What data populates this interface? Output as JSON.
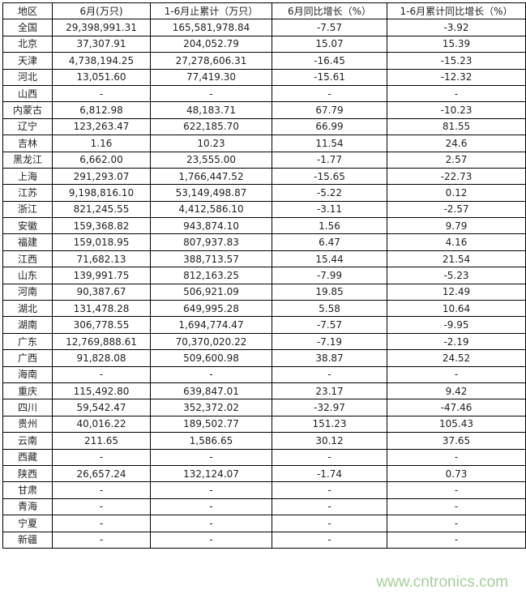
{
  "table": {
    "headers": [
      "地区",
      "6月(万只)",
      "1-6月止累计（万只）",
      "6月同比增长（%）",
      "1-6月累计同比增长（%）"
    ],
    "rows": [
      [
        "全国",
        "29,398,991.31",
        "165,581,978.84",
        "-7.57",
        "-3.92"
      ],
      [
        "北京",
        "37,307.91",
        "204,052.79",
        "15.07",
        "15.39"
      ],
      [
        "天津",
        "4,738,194.25",
        "27,278,606.31",
        "-16.45",
        "-15.23"
      ],
      [
        "河北",
        "13,051.60",
        "77,419.30",
        "-15.61",
        "-12.32"
      ],
      [
        "山西",
        "-",
        "-",
        "-",
        "-"
      ],
      [
        "内蒙古",
        "6,812.98",
        "48,183.71",
        "67.79",
        "-10.23"
      ],
      [
        "辽宁",
        "123,263.47",
        "622,185.70",
        "66.99",
        "81.55"
      ],
      [
        "吉林",
        "1.16",
        "10.23",
        "11.54",
        "24.6"
      ],
      [
        "黑龙江",
        "6,662.00",
        "23,555.00",
        "-1.77",
        "2.57"
      ],
      [
        "上海",
        "291,293.07",
        "1,766,447.52",
        "-15.65",
        "-22.73"
      ],
      [
        "江苏",
        "9,198,816.10",
        "53,149,498.87",
        "-5.22",
        "0.12"
      ],
      [
        "浙江",
        "821,245.55",
        "4,412,586.10",
        "-3.11",
        "-2.57"
      ],
      [
        "安徽",
        "159,368.82",
        "943,874.10",
        "1.56",
        "9.79"
      ],
      [
        "福建",
        "159,018.95",
        "807,937.83",
        "6.47",
        "4.16"
      ],
      [
        "江西",
        "71,682.13",
        "388,713.57",
        "15.44",
        "21.54"
      ],
      [
        "山东",
        "139,991.75",
        "812,163.25",
        "-7.99",
        "-5.23"
      ],
      [
        "河南",
        "90,387.67",
        "506,921.09",
        "19.85",
        "12.49"
      ],
      [
        "湖北",
        "131,478.28",
        "649,995.28",
        "5.58",
        "10.64"
      ],
      [
        "湖南",
        "306,778.55",
        "1,694,774.47",
        "-7.57",
        "-9.95"
      ],
      [
        "广东",
        "12,769,888.61",
        "70,370,020.22",
        "-7.19",
        "-2.19"
      ],
      [
        "广西",
        "91,828.08",
        "509,600.98",
        "38.87",
        "24.52"
      ],
      [
        "海南",
        "-",
        "-",
        "-",
        "-"
      ],
      [
        "重庆",
        "115,492.80",
        "639,847.01",
        "23.17",
        "9.42"
      ],
      [
        "四川",
        "59,542.47",
        "352,372.02",
        "-32.97",
        "-47.46"
      ],
      [
        "贵州",
        "40,016.22",
        "189,502.77",
        "151.23",
        "105.43"
      ],
      [
        "云南",
        "211.65",
        "1,586.65",
        "30.12",
        "37.65"
      ],
      [
        "西藏",
        "-",
        "-",
        "-",
        "-"
      ],
      [
        "陕西",
        "26,657.24",
        "132,124.07",
        "-1.74",
        "0.73"
      ],
      [
        "甘肃",
        "-",
        "-",
        "-",
        "-"
      ],
      [
        "青海",
        "-",
        "-",
        "-",
        "-"
      ],
      [
        "宁夏",
        "-",
        "-",
        "-",
        "-"
      ],
      [
        "新疆",
        "-",
        "-",
        "-",
        "-"
      ]
    ]
  },
  "watermark": "www.cntronics.com"
}
